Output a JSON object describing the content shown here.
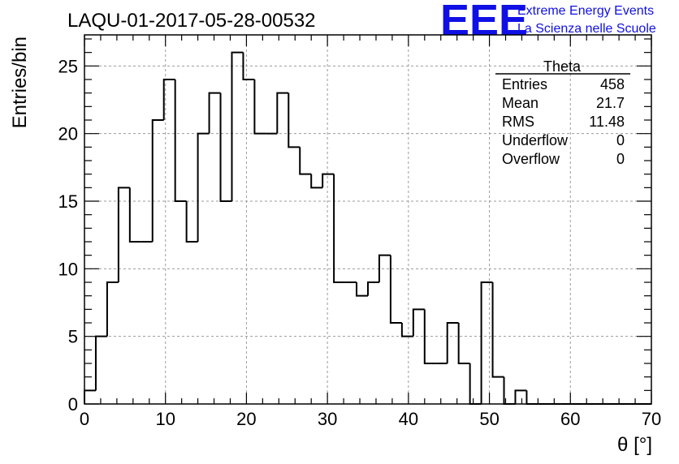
{
  "chart_data": {
    "type": "bar",
    "title": "LAQU-01-2017-05-28-00532",
    "xlabel": "θ [°]",
    "ylabel": "Entries/bin",
    "xlim": [
      0,
      70
    ],
    "ylim": [
      0,
      27.3
    ],
    "xticks": [
      0,
      10,
      20,
      30,
      40,
      50,
      60,
      70
    ],
    "yticks": [
      0,
      5,
      10,
      15,
      20,
      25
    ],
    "grid": true,
    "bin_width": 1.4,
    "bin_edges_start": 0,
    "values": [
      1,
      5,
      9,
      16,
      12,
      12,
      21,
      24,
      15,
      12,
      20,
      23,
      15,
      26,
      24,
      20,
      20,
      23,
      19,
      17,
      16,
      17,
      9,
      9,
      8,
      9,
      11,
      6,
      5,
      7,
      3,
      3,
      6,
      3,
      0,
      9,
      2,
      0,
      1,
      0,
      0,
      0,
      0,
      0,
      0,
      0,
      0,
      0,
      0,
      0
    ],
    "stats": {
      "name": "Theta",
      "rows": [
        {
          "label": "Entries",
          "value": "458"
        },
        {
          "label": "Mean",
          "value": "21.7"
        },
        {
          "label": "RMS",
          "value": "11.48"
        },
        {
          "label": "Underflow",
          "value": "0"
        },
        {
          "label": "Overflow",
          "value": "0"
        }
      ]
    }
  },
  "logo": {
    "mark": "EEE",
    "line1": "Extreme Energy Events",
    "line2": "La Scienza nelle Scuole",
    "color": "#1010e6"
  }
}
